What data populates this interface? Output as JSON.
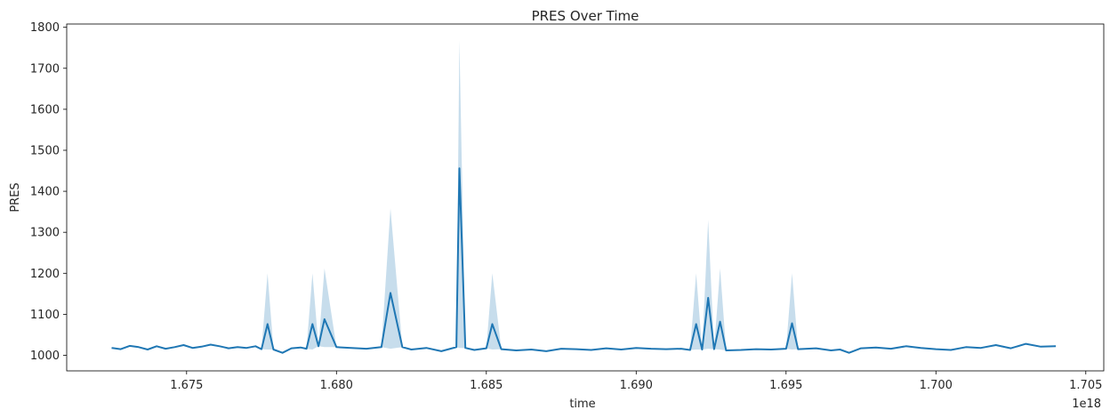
{
  "chart_data": {
    "type": "line",
    "title": "PRES Over Time",
    "xlabel": "time",
    "ylabel": "PRES",
    "x_offset_label": "1e18",
    "xlim": [
      1.671,
      1.7056
    ],
    "ylim": [
      962,
      1808
    ],
    "xticks": [
      {
        "value": 1.675,
        "label": "1.675"
      },
      {
        "value": 1.68,
        "label": "1.680"
      },
      {
        "value": 1.685,
        "label": "1.685"
      },
      {
        "value": 1.69,
        "label": "1.690"
      },
      {
        "value": 1.695,
        "label": "1.695"
      },
      {
        "value": 1.7,
        "label": "1.700"
      },
      {
        "value": 1.705,
        "label": "1.705"
      }
    ],
    "yticks": [
      {
        "value": 1000,
        "label": "1000"
      },
      {
        "value": 1100,
        "label": "1100"
      },
      {
        "value": 1200,
        "label": "1200"
      },
      {
        "value": 1300,
        "label": "1300"
      },
      {
        "value": 1400,
        "label": "1400"
      },
      {
        "value": 1500,
        "label": "1500"
      },
      {
        "value": 1600,
        "label": "1600"
      },
      {
        "value": 1700,
        "label": "1700"
      },
      {
        "value": 1800,
        "label": "1800"
      }
    ],
    "grid": false,
    "line_color": "#1f77b4",
    "band_color": "#1f77b4",
    "series": [
      {
        "x": [
          1.6725,
          1.6728,
          1.6731,
          1.6734,
          1.6737,
          1.674,
          1.6743,
          1.6746,
          1.6749,
          1.6752,
          1.6755,
          1.6758,
          1.6761,
          1.6764,
          1.6767,
          1.677,
          1.6773,
          1.6775,
          1.6777,
          1.6779,
          1.6782,
          1.6785,
          1.6788,
          1.679,
          1.6792,
          1.6794,
          1.6796,
          1.68,
          1.6805,
          1.681,
          1.6815,
          1.6818,
          1.6822,
          1.6825,
          1.683,
          1.6835,
          1.6838,
          1.684,
          1.6841,
          1.6843,
          1.6846,
          1.685,
          1.6852,
          1.6855,
          1.686,
          1.6865,
          1.687,
          1.6875,
          1.688,
          1.6885,
          1.689,
          1.6895,
          1.69,
          1.6905,
          1.691,
          1.6915,
          1.6918,
          1.692,
          1.6922,
          1.6924,
          1.6926,
          1.6928,
          1.693,
          1.6935,
          1.694,
          1.6945,
          1.695,
          1.6952,
          1.6954,
          1.696,
          1.6965,
          1.6968,
          1.6971,
          1.6975,
          1.698,
          1.6985,
          1.699,
          1.6995,
          1.7,
          1.7005,
          1.701,
          1.7015,
          1.702,
          1.7025,
          1.703,
          1.7035,
          1.704
        ],
        "values": [
          1018,
          1015,
          1023,
          1020,
          1014,
          1022,
          1016,
          1020,
          1025,
          1018,
          1021,
          1026,
          1022,
          1017,
          1020,
          1018,
          1022,
          1015,
          1076,
          1014,
          1006,
          1017,
          1019,
          1016,
          1076,
          1022,
          1088,
          1020,
          1018,
          1016,
          1020,
          1152,
          1020,
          1014,
          1018,
          1010,
          1016,
          1020,
          1456,
          1018,
          1013,
          1017,
          1076,
          1015,
          1012,
          1014,
          1010,
          1016,
          1015,
          1013,
          1017,
          1014,
          1018,
          1016,
          1015,
          1016,
          1013,
          1076,
          1014,
          1140,
          1015,
          1082,
          1012,
          1013,
          1015,
          1014,
          1016,
          1078,
          1015,
          1017,
          1012,
          1014,
          1006,
          1017,
          1019,
          1016,
          1022,
          1018,
          1015,
          1013,
          1020,
          1018,
          1025,
          1017,
          1028,
          1021,
          1022
        ],
        "upper": [
          1018,
          1015,
          1023,
          1020,
          1014,
          1022,
          1016,
          1020,
          1025,
          1018,
          1021,
          1026,
          1022,
          1017,
          1020,
          1018,
          1022,
          1015,
          1200,
          1014,
          1006,
          1017,
          1019,
          1016,
          1200,
          1022,
          1212,
          1020,
          1018,
          1016,
          1020,
          1358,
          1020,
          1014,
          1018,
          1010,
          1016,
          1020,
          1768,
          1018,
          1013,
          1017,
          1200,
          1015,
          1012,
          1014,
          1010,
          1016,
          1015,
          1013,
          1017,
          1014,
          1018,
          1016,
          1015,
          1016,
          1013,
          1200,
          1014,
          1330,
          1015,
          1212,
          1012,
          1013,
          1015,
          1014,
          1016,
          1200,
          1015,
          1017,
          1012,
          1014,
          1006,
          1017,
          1019,
          1016,
          1022,
          1018,
          1015,
          1013,
          1020,
          1018,
          1025,
          1017,
          1028,
          1021,
          1022
        ],
        "lower": [
          1018,
          1015,
          1023,
          1020,
          1014,
          1022,
          1016,
          1020,
          1025,
          1018,
          1021,
          1026,
          1022,
          1017,
          1020,
          1018,
          1022,
          1015,
          1014,
          1014,
          1006,
          1017,
          1019,
          1016,
          1014,
          1022,
          1020,
          1020,
          1018,
          1016,
          1020,
          1016,
          1020,
          1014,
          1018,
          1010,
          1016,
          1020,
          1018,
          1018,
          1013,
          1017,
          1014,
          1015,
          1012,
          1014,
          1010,
          1016,
          1015,
          1013,
          1017,
          1014,
          1018,
          1016,
          1015,
          1016,
          1013,
          1014,
          1014,
          1016,
          1015,
          1014,
          1012,
          1013,
          1015,
          1014,
          1016,
          1014,
          1015,
          1017,
          1012,
          1014,
          1006,
          1017,
          1019,
          1016,
          1022,
          1018,
          1015,
          1013,
          1020,
          1018,
          1025,
          1017,
          1028,
          1021,
          1022
        ]
      }
    ]
  }
}
